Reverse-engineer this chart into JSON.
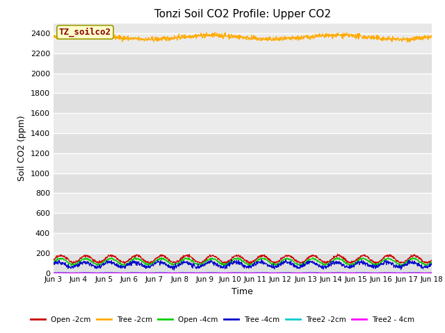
{
  "title": "Tonzi Soil CO2 Profile: Upper CO2",
  "xlabel": "Time",
  "ylabel": "Soil CO2 (ppm)",
  "ylim": [
    0,
    2500
  ],
  "yticks": [
    0,
    200,
    400,
    600,
    800,
    1000,
    1200,
    1400,
    1600,
    1800,
    2000,
    2200,
    2400
  ],
  "background_color": "#e8e8e8",
  "annotation_text": "TZ_soilco2",
  "legend_entries": [
    "Open -2cm",
    "Tree -2cm",
    "Open -4cm",
    "Tree -4cm",
    "Tree2 -2cm",
    "Tree2 - 4cm"
  ],
  "line_colors": [
    "#cc0000",
    "#ffaa00",
    "#00cc00",
    "#0000cc",
    "#00cccc",
    "#ff00ff"
  ],
  "n_points": 1440,
  "xtick_labels": [
    "Jun 3",
    "Jun 4",
    "Jun 5",
    "Jun 6",
    "Jun 7",
    "Jun 8",
    "Jun 9",
    "Jun 10",
    "Jun 11",
    "Jun 12",
    "Jun 13",
    "Jun 14",
    "Jun 15",
    "Jun 16",
    "Jun 17",
    "Jun 18"
  ]
}
